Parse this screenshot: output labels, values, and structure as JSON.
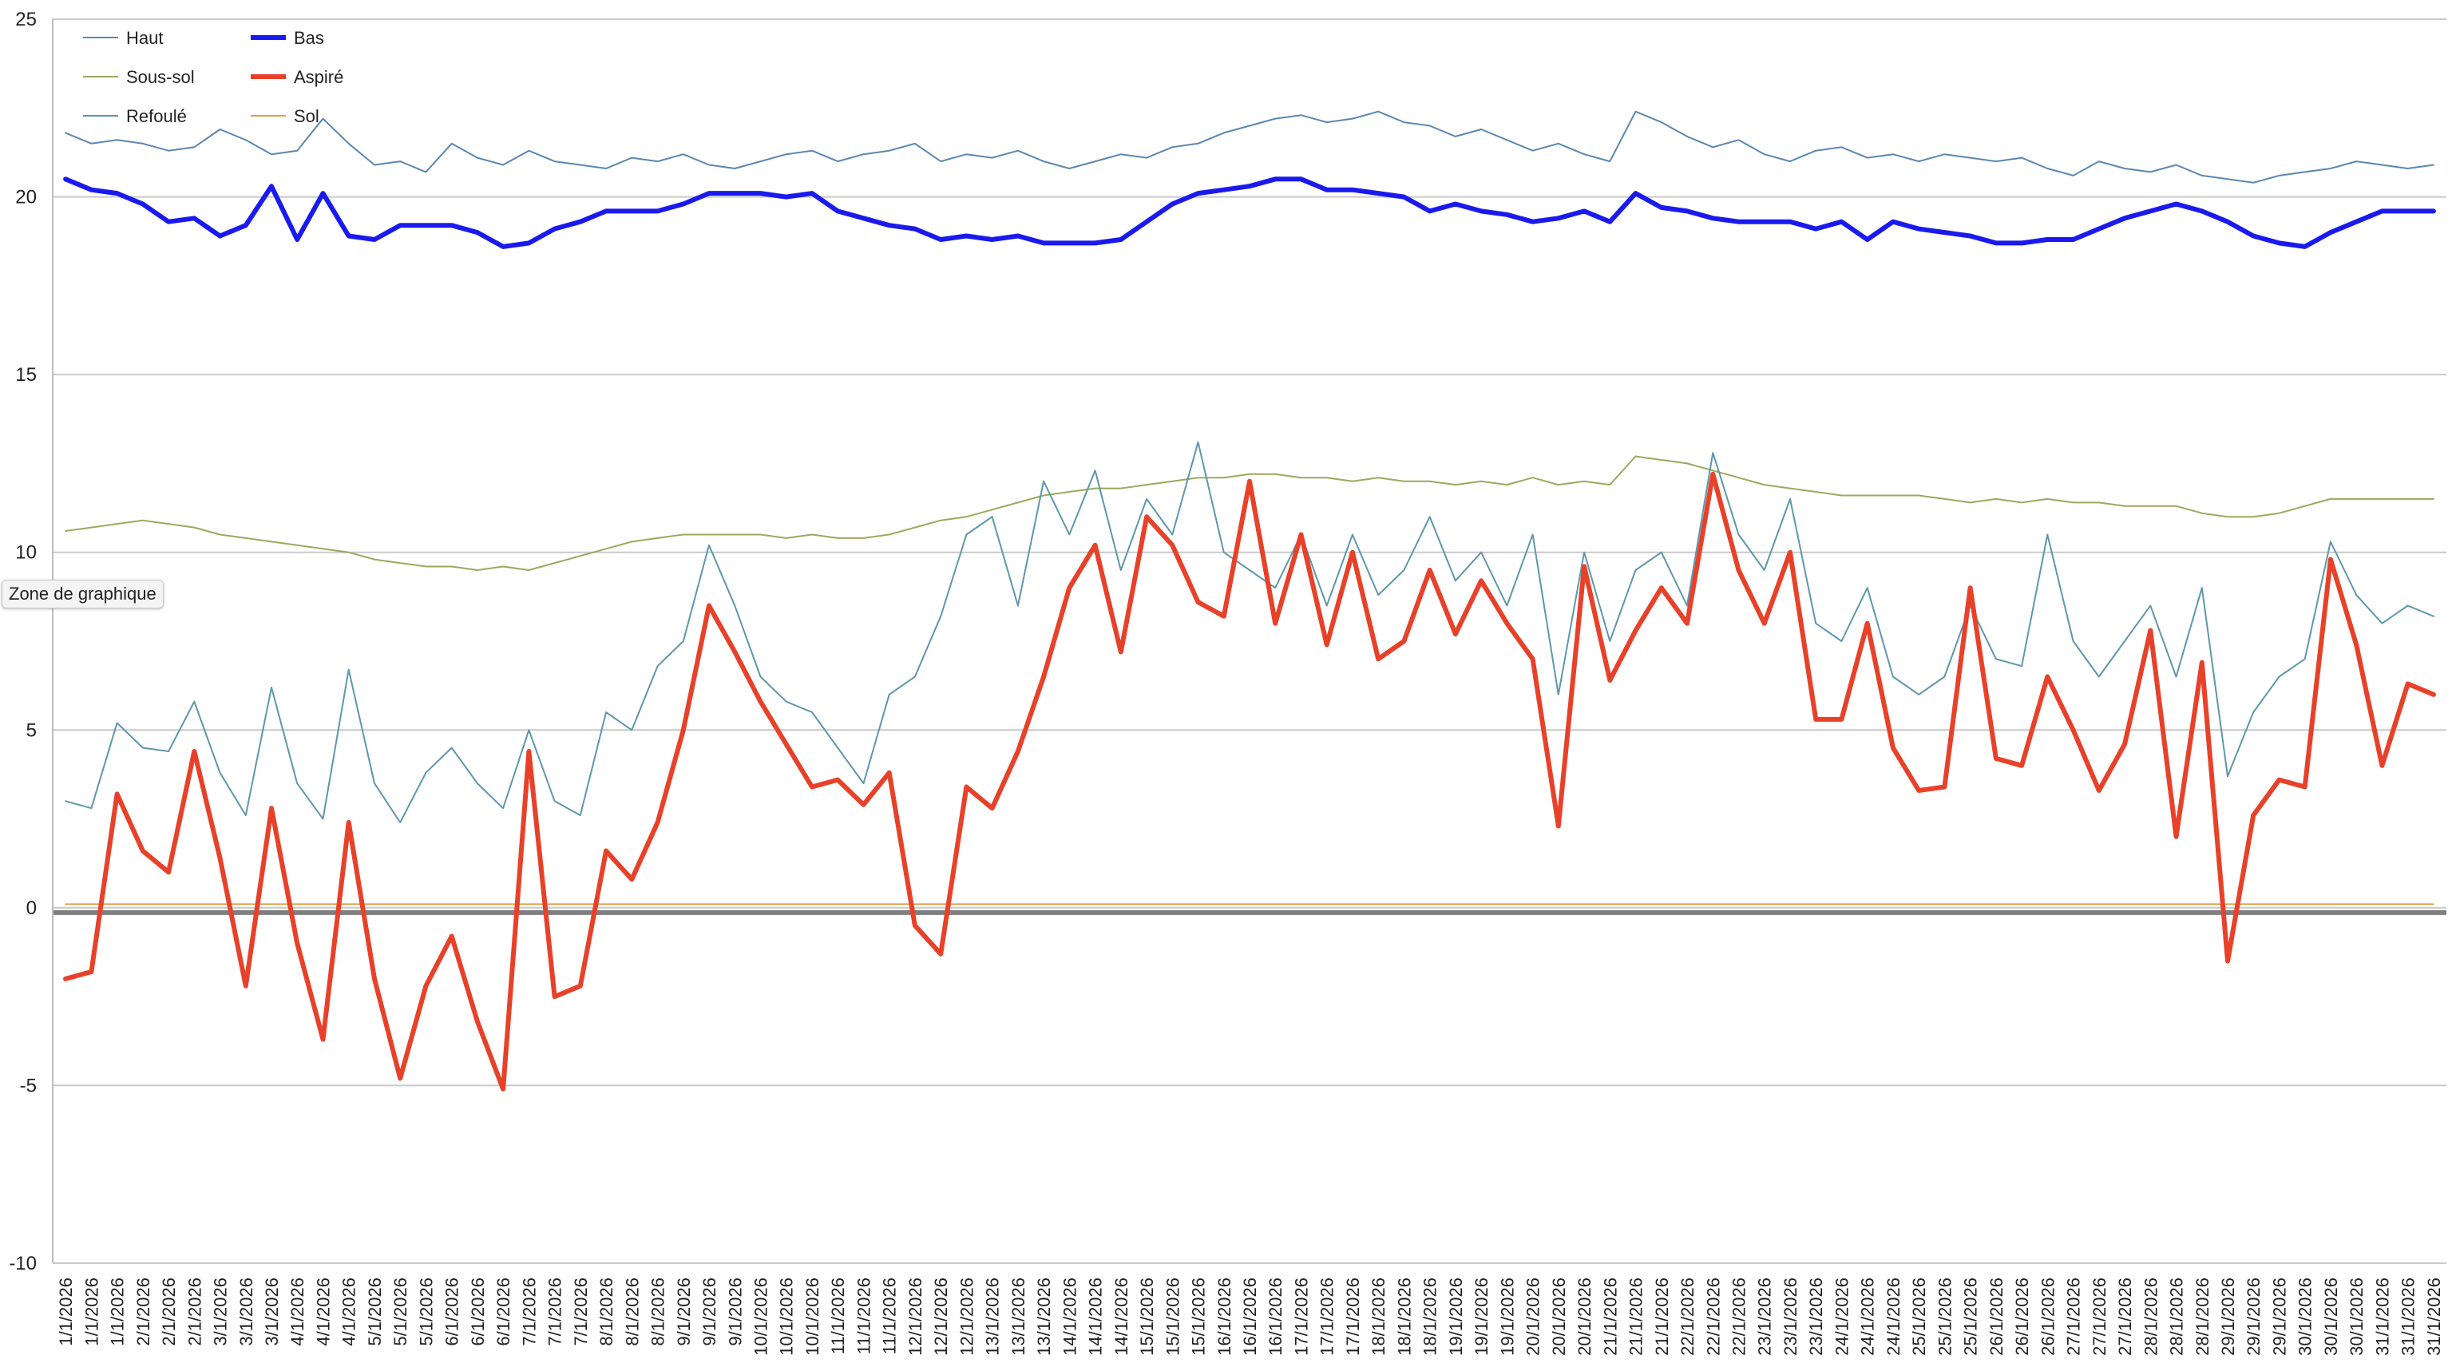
{
  "tooltip": "Zone de graphique",
  "chart_data": {
    "type": "line",
    "ylim": [
      -10,
      25
    ],
    "yticks": [
      -10,
      -5,
      0,
      5,
      10,
      15,
      20,
      25
    ],
    "grid": true,
    "legend_position": "top-left",
    "x": [
      "1/1/2026",
      "1/1/2026",
      "1/1/2026",
      "2/1/2026",
      "2/1/2026",
      "2/1/2026",
      "3/1/2026",
      "3/1/2026",
      "3/1/2026",
      "4/1/2026",
      "4/1/2026",
      "4/1/2026",
      "5/1/2026",
      "5/1/2026",
      "5/1/2026",
      "6/1/2026",
      "6/1/2026",
      "6/1/2026",
      "7/1/2026",
      "7/1/2026",
      "7/1/2026",
      "8/1/2026",
      "8/1/2026",
      "8/1/2026",
      "9/1/2026",
      "9/1/2026",
      "9/1/2026",
      "10/1/2026",
      "10/1/2026",
      "10/1/2026",
      "11/1/2026",
      "11/1/2026",
      "11/1/2026",
      "12/1/2026",
      "12/1/2026",
      "12/1/2026",
      "13/1/2026",
      "13/1/2026",
      "13/1/2026",
      "14/1/2026",
      "14/1/2026",
      "14/1/2026",
      "15/1/2026",
      "15/1/2026",
      "15/1/2026",
      "16/1/2026",
      "16/1/2026",
      "16/1/2026",
      "17/1/2026",
      "17/1/2026",
      "17/1/2026",
      "18/1/2026",
      "18/1/2026",
      "18/1/2026",
      "19/1/2026",
      "19/1/2026",
      "19/1/2026",
      "20/1/2026",
      "20/1/2026",
      "20/1/2026",
      "21/1/2026",
      "21/1/2026",
      "21/1/2026",
      "22/1/2026",
      "22/1/2026",
      "22/1/2026",
      "23/1/2026",
      "23/1/2026",
      "23/1/2026",
      "24/1/2026",
      "24/1/2026",
      "24/1/2026",
      "25/1/2026",
      "25/1/2026",
      "25/1/2026",
      "26/1/2026",
      "26/1/2026",
      "26/1/2026",
      "27/1/2026",
      "27/1/2026",
      "27/1/2026",
      "28/1/2026",
      "28/1/2026",
      "28/1/2026",
      "29/1/2026",
      "29/1/2026",
      "29/1/2026",
      "30/1/2026",
      "30/1/2026",
      "30/1/2026",
      "31/1/2026",
      "31/1/2026",
      "31/1/2026"
    ],
    "series": [
      {
        "name": "Haut",
        "color": "#5b87b0",
        "width": 2,
        "values": [
          21.8,
          21.5,
          21.6,
          21.5,
          21.3,
          21.4,
          21.9,
          21.6,
          21.2,
          21.3,
          22.2,
          21.5,
          20.9,
          21.0,
          20.7,
          21.5,
          21.1,
          20.9,
          21.3,
          21.0,
          20.9,
          20.8,
          21.1,
          21.0,
          21.2,
          20.9,
          20.8,
          21.0,
          21.2,
          21.3,
          21.0,
          21.2,
          21.3,
          21.5,
          21.0,
          21.2,
          21.1,
          21.3,
          21.0,
          20.8,
          21.0,
          21.2,
          21.1,
          21.4,
          21.5,
          21.8,
          22.0,
          22.2,
          22.3,
          22.1,
          22.2,
          22.4,
          22.1,
          22.0,
          21.7,
          21.9,
          21.6,
          21.3,
          21.5,
          21.2,
          21.0,
          22.4,
          22.1,
          21.7,
          21.4,
          21.6,
          21.2,
          21.0,
          21.3,
          21.4,
          21.1,
          21.2,
          21.0,
          21.2,
          21.1,
          21.0,
          21.1,
          20.8,
          20.6,
          21.0,
          20.8,
          20.7,
          20.9,
          20.6,
          20.5,
          20.4,
          20.6,
          20.7,
          20.8,
          21.0,
          20.9,
          20.8,
          20.9
        ]
      },
      {
        "name": "Bas",
        "color": "#1a1aee",
        "width": 6,
        "values": [
          20.5,
          20.2,
          20.1,
          19.8,
          19.3,
          19.4,
          18.9,
          19.2,
          20.3,
          18.8,
          20.1,
          18.9,
          18.8,
          19.2,
          19.2,
          19.2,
          19.0,
          18.6,
          18.7,
          19.1,
          19.3,
          19.6,
          19.6,
          19.6,
          19.8,
          20.1,
          20.1,
          20.1,
          20.0,
          20.1,
          19.6,
          19.4,
          19.2,
          19.1,
          18.8,
          18.9,
          18.8,
          18.9,
          18.7,
          18.7,
          18.7,
          18.8,
          19.3,
          19.8,
          20.1,
          20.2,
          20.3,
          20.5,
          20.5,
          20.2,
          20.2,
          20.1,
          20.0,
          19.6,
          19.8,
          19.6,
          19.5,
          19.3,
          19.4,
          19.6,
          19.3,
          20.1,
          19.7,
          19.6,
          19.4,
          19.3,
          19.3,
          19.3,
          19.1,
          19.3,
          18.8,
          19.3,
          19.1,
          19.0,
          18.9,
          18.7,
          18.7,
          18.8,
          18.8,
          19.1,
          19.4,
          19.6,
          19.8,
          19.6,
          19.3,
          18.9,
          18.7,
          18.6,
          19.0,
          19.3,
          19.6,
          19.6,
          19.6
        ]
      },
      {
        "name": "Sous-sol",
        "color": "#9aaa5e",
        "width": 2,
        "values": [
          10.6,
          10.7,
          10.8,
          10.9,
          10.8,
          10.7,
          10.5,
          10.4,
          10.3,
          10.2,
          10.1,
          10.0,
          9.8,
          9.7,
          9.6,
          9.6,
          9.5,
          9.6,
          9.5,
          9.7,
          9.9,
          10.1,
          10.3,
          10.4,
          10.5,
          10.5,
          10.5,
          10.5,
          10.4,
          10.5,
          10.4,
          10.4,
          10.5,
          10.7,
          10.9,
          11.0,
          11.2,
          11.4,
          11.6,
          11.7,
          11.8,
          11.8,
          11.9,
          12.0,
          12.1,
          12.1,
          12.2,
          12.2,
          12.1,
          12.1,
          12.0,
          12.1,
          12.0,
          12.0,
          11.9,
          12.0,
          11.9,
          12.1,
          11.9,
          12.0,
          11.9,
          12.7,
          12.6,
          12.5,
          12.3,
          12.1,
          11.9,
          11.8,
          11.7,
          11.6,
          11.6,
          11.6,
          11.6,
          11.5,
          11.4,
          11.5,
          11.4,
          11.5,
          11.4,
          11.4,
          11.3,
          11.3,
          11.3,
          11.1,
          11.0,
          11.0,
          11.1,
          11.3,
          11.5,
          11.5,
          11.5,
          11.5,
          11.5
        ]
      },
      {
        "name": "Aspiré",
        "color": "#e8412a",
        "width": 6,
        "values": [
          -2.0,
          -1.8,
          3.2,
          1.6,
          1.0,
          4.4,
          1.4,
          -2.2,
          2.8,
          -1.0,
          -3.7,
          2.4,
          -2.0,
          -4.8,
          -2.2,
          -0.8,
          -3.2,
          -5.1,
          4.4,
          -2.5,
          -2.2,
          1.6,
          0.8,
          2.4,
          5.0,
          8.5,
          7.2,
          5.8,
          4.6,
          3.4,
          3.6,
          2.9,
          3.8,
          -0.5,
          -1.3,
          3.4,
          2.8,
          4.4,
          6.5,
          9.0,
          10.2,
          7.2,
          11.0,
          10.2,
          8.6,
          8.2,
          12.0,
          8.0,
          10.5,
          7.4,
          10.0,
          7.0,
          7.5,
          9.5,
          7.7,
          9.2,
          8.0,
          7.0,
          2.3,
          9.6,
          6.4,
          7.8,
          9.0,
          8.0,
          12.2,
          9.5,
          8.0,
          10.0,
          5.3,
          5.3,
          8.0,
          4.5,
          3.3,
          3.4,
          9.0,
          4.2,
          4.0,
          6.5,
          5.0,
          3.3,
          4.6,
          7.8,
          2.0,
          6.9,
          -1.5,
          2.6,
          3.6,
          3.4,
          9.8,
          7.4,
          4.0,
          6.3,
          6.0
        ]
      },
      {
        "name": "Refoulé",
        "color": "#5e97aa",
        "width": 2,
        "values": [
          3.0,
          2.8,
          5.2,
          4.5,
          4.4,
          5.8,
          3.8,
          2.6,
          6.2,
          3.5,
          2.5,
          6.7,
          3.5,
          2.4,
          3.8,
          4.5,
          3.5,
          2.8,
          5.0,
          3.0,
          2.6,
          5.5,
          5.0,
          6.8,
          7.5,
          10.2,
          8.5,
          6.5,
          5.8,
          5.5,
          4.5,
          3.5,
          6.0,
          6.5,
          8.2,
          10.5,
          11.0,
          8.5,
          12.0,
          10.5,
          12.3,
          9.5,
          11.5,
          10.5,
          13.1,
          10.0,
          9.5,
          9.0,
          10.5,
          8.5,
          10.5,
          8.8,
          9.5,
          11.0,
          9.2,
          10.0,
          8.5,
          10.5,
          6.0,
          10.0,
          7.5,
          9.5,
          10.0,
          8.5,
          12.8,
          10.5,
          9.5,
          11.5,
          8.0,
          7.5,
          9.0,
          6.5,
          6.0,
          6.5,
          8.5,
          7.0,
          6.8,
          10.5,
          7.5,
          6.5,
          7.5,
          8.5,
          6.5,
          9.0,
          3.7,
          5.5,
          6.5,
          7.0,
          10.3,
          8.8,
          8.0,
          8.5,
          8.2
        ]
      },
      {
        "name": "Sol",
        "color": "#e0a245",
        "width": 2,
        "values": [
          0.1,
          0.1,
          0.1,
          0.1,
          0.1,
          0.1,
          0.1,
          0.1,
          0.1,
          0.1,
          0.1,
          0.1,
          0.1,
          0.1,
          0.1,
          0.1,
          0.1,
          0.1,
          0.1,
          0.1,
          0.1,
          0.1,
          0.1,
          0.1,
          0.1,
          0.1,
          0.1,
          0.1,
          0.1,
          0.1,
          0.1,
          0.1,
          0.1,
          0.1,
          0.1,
          0.1,
          0.1,
          0.1,
          0.1,
          0.1,
          0.1,
          0.1,
          0.1,
          0.1,
          0.1,
          0.1,
          0.1,
          0.1,
          0.1,
          0.1,
          0.1,
          0.1,
          0.1,
          0.1,
          0.1,
          0.1,
          0.1,
          0.1,
          0.1,
          0.1,
          0.1,
          0.1,
          0.1,
          0.1,
          0.1,
          0.1,
          0.1,
          0.1,
          0.1,
          0.1,
          0.1,
          0.1,
          0.1,
          0.1,
          0.1,
          0.1,
          0.1,
          0.1,
          0.1,
          0.1,
          0.1,
          0.1,
          0.1,
          0.1,
          0.1,
          0.1,
          0.1,
          0.1,
          0.1,
          0.1,
          0.1,
          0.1,
          0.1
        ]
      }
    ]
  }
}
